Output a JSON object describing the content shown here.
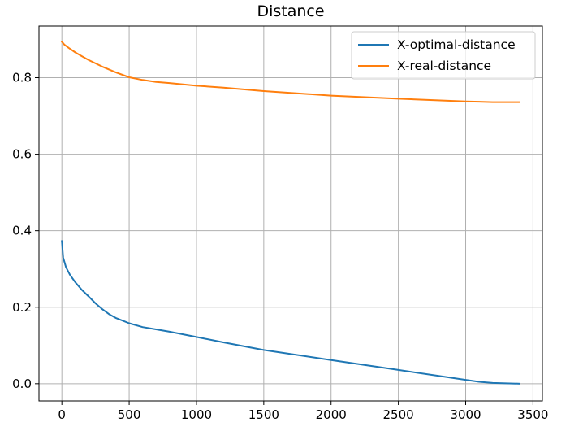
{
  "chart_data": {
    "type": "line",
    "title": "Distance",
    "xlabel": "",
    "ylabel": "",
    "xlim": [
      -170,
      3570
    ],
    "ylim": [
      -0.045,
      0.935
    ],
    "xticks": [
      0,
      500,
      1000,
      1500,
      2000,
      2500,
      3000,
      3500
    ],
    "xtick_labels": [
      "0",
      "500",
      "1000",
      "1500",
      "2000",
      "2500",
      "3000",
      "3500"
    ],
    "yticks": [
      0.0,
      0.2,
      0.4,
      0.6,
      0.8
    ],
    "ytick_labels": [
      "0.0",
      "0.2",
      "0.4",
      "0.6",
      "0.8"
    ],
    "grid": true,
    "legend_position": "top-right",
    "series": [
      {
        "name": "X-optimal-distance",
        "color": "#1f77b4",
        "x": [
          0,
          10,
          30,
          60,
          100,
          150,
          200,
          250,
          300,
          350,
          400,
          450,
          500,
          600,
          700,
          800,
          1000,
          1200,
          1500,
          2000,
          2500,
          3000,
          3100,
          3200,
          3300,
          3400
        ],
        "y": [
          0.373,
          0.33,
          0.305,
          0.285,
          0.265,
          0.245,
          0.228,
          0.21,
          0.195,
          0.182,
          0.172,
          0.165,
          0.158,
          0.148,
          0.142,
          0.136,
          0.122,
          0.108,
          0.088,
          0.062,
          0.036,
          0.01,
          0.005,
          0.002,
          0.001,
          0.0
        ]
      },
      {
        "name": "X-real-distance",
        "color": "#ff7f0e",
        "x": [
          0,
          20,
          50,
          100,
          150,
          200,
          300,
          400,
          500,
          600,
          700,
          800,
          1000,
          1200,
          1500,
          2000,
          2500,
          3000,
          3100,
          3200,
          3300,
          3400
        ],
        "y": [
          0.894,
          0.886,
          0.878,
          0.866,
          0.856,
          0.846,
          0.829,
          0.814,
          0.801,
          0.794,
          0.789,
          0.786,
          0.779,
          0.774,
          0.765,
          0.753,
          0.745,
          0.738,
          0.737,
          0.736,
          0.736,
          0.736
        ]
      }
    ]
  }
}
